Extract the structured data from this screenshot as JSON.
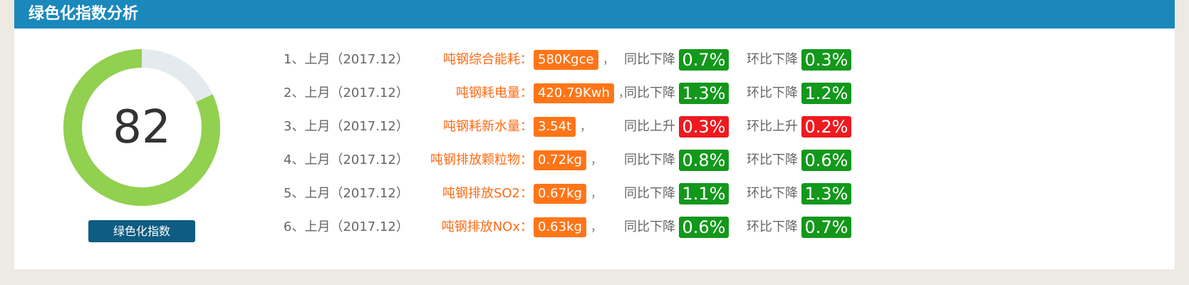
{
  "header": {
    "title": "绿色化指数分析"
  },
  "gauge": {
    "value": "82",
    "percent": 82,
    "label": "绿色化指数",
    "colors": {
      "fill": "#92d04f",
      "track": "#e4ebef"
    }
  },
  "rows": [
    {
      "index": "1、上月（2017.12）",
      "metric": "吨钢综合能耗：",
      "value": "580Kgce",
      "sep": "，",
      "tb_label": "同比下降",
      "tb_value": "0.7%",
      "tb_dir": "down",
      "hb_label": "环比下降",
      "hb_value": "0.3%",
      "hb_dir": "down"
    },
    {
      "index": "2、上月（2017.12）",
      "metric": "吨钢耗电量：",
      "value": "420.79Kwh",
      "sep": "，",
      "tb_label": "同比下降",
      "tb_value": "1.3%",
      "tb_dir": "down",
      "hb_label": "环比下降",
      "hb_value": "1.2%",
      "hb_dir": "down"
    },
    {
      "index": "3、上月（2017.12）",
      "metric": "吨钢耗新水量：",
      "value": "3.54t",
      "sep": "，",
      "tb_label": "同比上升",
      "tb_value": "0.3%",
      "tb_dir": "up",
      "hb_label": "环比上升",
      "hb_value": "0.2%",
      "hb_dir": "up"
    },
    {
      "index": "4、上月（2017.12）",
      "metric": "吨钢排放颗粒物：",
      "value": "0.72kg",
      "sep": "，",
      "tb_label": "同比下降",
      "tb_value": "0.8%",
      "tb_dir": "down",
      "hb_label": "环比下降",
      "hb_value": "0.6%",
      "hb_dir": "down"
    },
    {
      "index": "5、上月（2017.12）",
      "metric": "吨钢排放SO2：",
      "value": "0.67kg",
      "sep": "，",
      "tb_label": "同比下降",
      "tb_value": "1.1%",
      "tb_dir": "down",
      "hb_label": "环比下降",
      "hb_value": "1.3%",
      "hb_dir": "down"
    },
    {
      "index": "6、上月（2017.12）",
      "metric": "吨钢排放NOx：",
      "value": "0.63kg",
      "sep": "，",
      "tb_label": "同比下降",
      "tb_value": "0.6%",
      "tb_dir": "down",
      "hb_label": "环比下降",
      "hb_value": "0.7%",
      "hb_dir": "down"
    }
  ],
  "colors": {
    "header_bg": "#1a88bb",
    "metric_text": "#ff6a13",
    "value_box": "#ff7518",
    "down": "#13981b",
    "up": "#ee1a1f"
  }
}
